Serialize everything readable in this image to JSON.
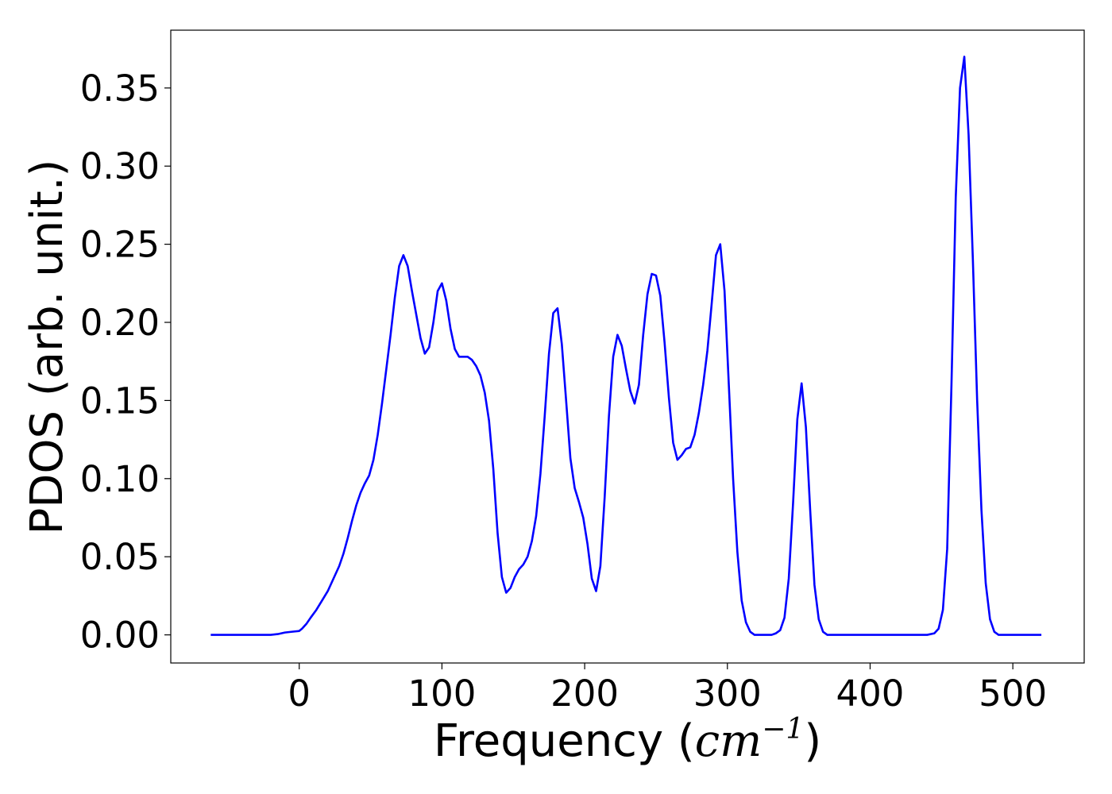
{
  "chart_data": {
    "type": "line",
    "title": "",
    "xlabel": "Frequency",
    "xlabel_unit": "cm",
    "xlabel_unit_exp": "−1",
    "ylabel": "PDOS (arb. unit.)",
    "xlim": [
      -90,
      550
    ],
    "ylim": [
      -0.018,
      0.387
    ],
    "xticks": [
      0,
      100,
      200,
      300,
      400,
      500
    ],
    "yticks": [
      0.0,
      0.05,
      0.1,
      0.15,
      0.2,
      0.25,
      0.3,
      0.35
    ],
    "xtick_labels": [
      "0",
      "100",
      "200",
      "300",
      "400",
      "500"
    ],
    "ytick_labels": [
      "0.00",
      "0.05",
      "0.10",
      "0.15",
      "0.20",
      "0.25",
      "0.30",
      "0.35"
    ],
    "grid": false,
    "series": [
      {
        "color": "#0000ff",
        "x": [
          -62,
          -20,
          -15,
          -10,
          -5,
          0,
          2,
          5,
          8,
          12,
          16,
          20,
          24,
          28,
          31,
          34,
          37,
          40,
          43,
          46,
          49,
          52,
          55,
          58,
          61,
          64,
          67,
          70,
          73,
          76,
          79,
          82,
          85,
          88,
          91,
          94,
          97,
          100,
          103,
          106,
          109,
          112,
          115,
          118,
          121,
          124,
          127,
          130,
          133,
          136,
          139,
          142,
          145,
          148,
          151,
          154,
          157,
          160,
          163,
          166,
          169,
          172,
          175,
          178,
          181,
          184,
          187,
          190,
          193,
          196,
          199,
          202,
          205,
          208,
          211,
          214,
          217,
          220,
          223,
          226,
          229,
          232,
          235,
          238,
          241,
          244,
          247,
          250,
          253,
          256,
          259,
          262,
          265,
          268,
          271,
          274,
          277,
          280,
          283,
          286,
          289,
          292,
          295,
          298,
          301,
          304,
          307,
          310,
          313,
          316,
          319,
          322,
          325,
          328,
          331,
          334,
          337,
          340,
          343,
          346,
          349,
          352,
          355,
          358,
          361,
          364,
          367,
          370,
          373,
          376,
          380,
          400,
          420,
          440,
          445,
          448,
          451,
          454,
          457,
          460,
          463,
          466,
          469,
          472,
          475,
          478,
          481,
          484,
          487,
          490,
          495,
          520
        ],
        "y": [
          0.0,
          0.0,
          0.0005,
          0.0015,
          0.002,
          0.0025,
          0.004,
          0.007,
          0.011,
          0.016,
          0.022,
          0.028,
          0.036,
          0.044,
          0.052,
          0.062,
          0.073,
          0.083,
          0.091,
          0.097,
          0.102,
          0.112,
          0.128,
          0.148,
          0.17,
          0.192,
          0.216,
          0.236,
          0.243,
          0.236,
          0.22,
          0.205,
          0.19,
          0.18,
          0.184,
          0.2,
          0.22,
          0.225,
          0.214,
          0.196,
          0.183,
          0.178,
          0.178,
          0.178,
          0.176,
          0.172,
          0.166,
          0.155,
          0.137,
          0.106,
          0.065,
          0.037,
          0.027,
          0.03,
          0.037,
          0.042,
          0.045,
          0.05,
          0.06,
          0.076,
          0.103,
          0.14,
          0.18,
          0.206,
          0.209,
          0.186,
          0.15,
          0.113,
          0.094,
          0.085,
          0.075,
          0.058,
          0.036,
          0.028,
          0.044,
          0.088,
          0.14,
          0.178,
          0.192,
          0.185,
          0.17,
          0.156,
          0.148,
          0.16,
          0.192,
          0.218,
          0.231,
          0.23,
          0.217,
          0.187,
          0.152,
          0.123,
          0.112,
          0.115,
          0.119,
          0.12,
          0.128,
          0.142,
          0.16,
          0.182,
          0.212,
          0.243,
          0.25,
          0.22,
          0.16,
          0.1,
          0.053,
          0.022,
          0.008,
          0.002,
          0.0,
          0.0,
          0.0,
          0.0,
          0.0,
          0.001,
          0.003,
          0.011,
          0.036,
          0.084,
          0.138,
          0.161,
          0.133,
          0.08,
          0.032,
          0.01,
          0.002,
          0.0,
          0.0,
          0.0,
          0.0,
          0.0,
          0.0,
          0.0,
          0.001,
          0.004,
          0.016,
          0.055,
          0.16,
          0.28,
          0.35,
          0.37,
          0.32,
          0.24,
          0.15,
          0.08,
          0.033,
          0.01,
          0.002,
          0.0,
          0.0,
          0.0
        ]
      }
    ]
  }
}
